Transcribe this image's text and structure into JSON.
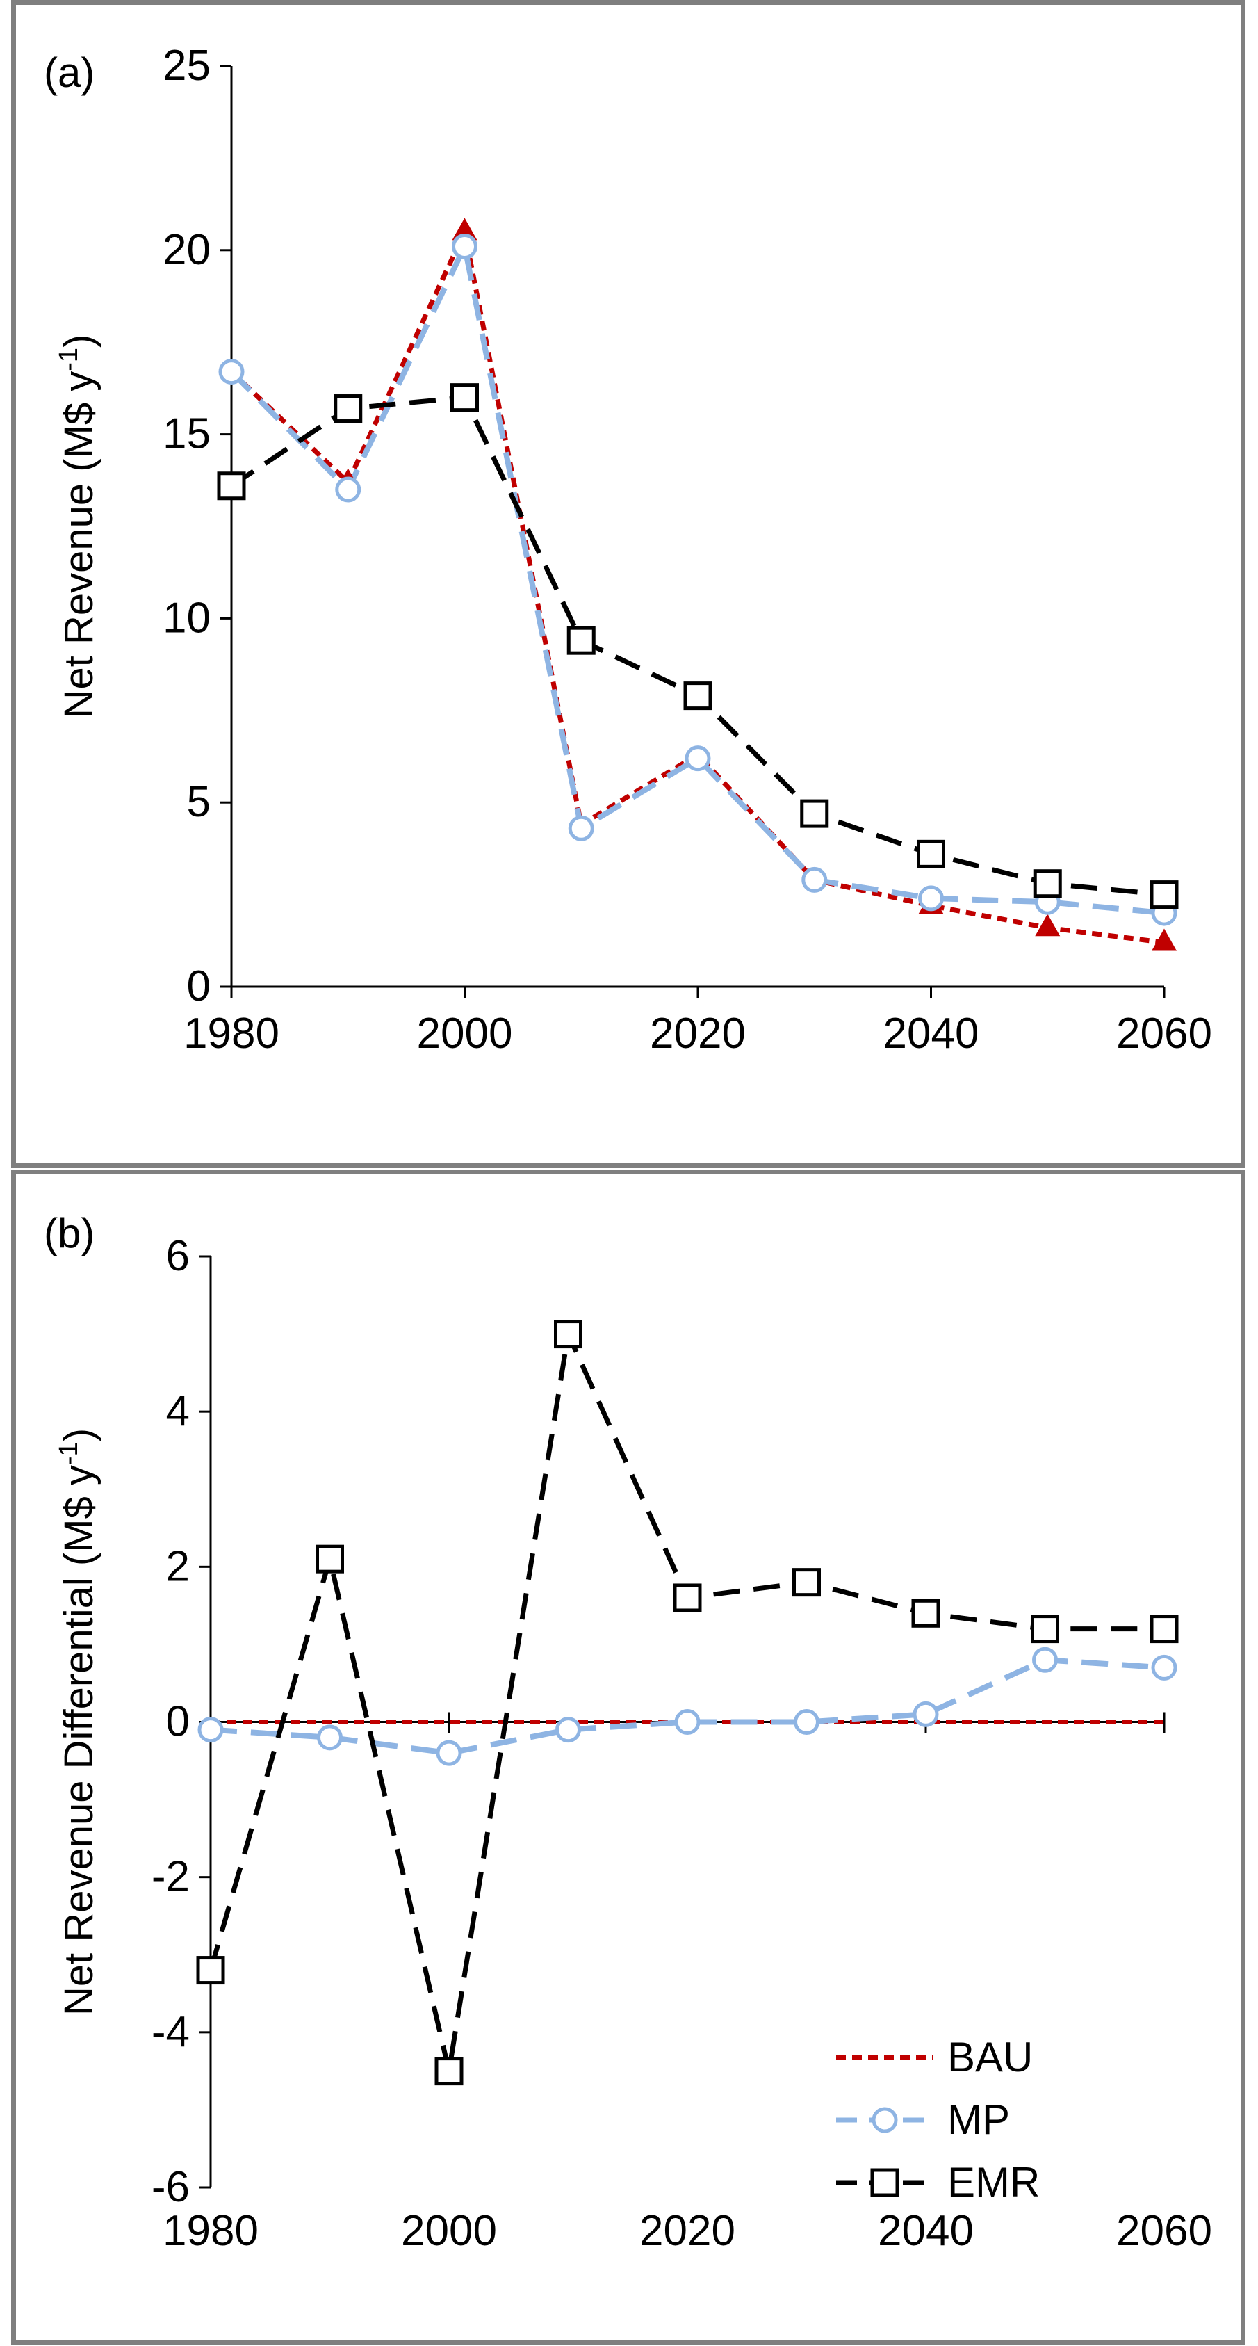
{
  "chart_data": [
    {
      "type": "line",
      "panel_label": "(a)",
      "ylabel": "Net Revenue (M$ y",
      "ylabel_sup": "-1",
      "ylabel_close": ")",
      "x": [
        1980,
        1990,
        2000,
        2010,
        2020,
        2030,
        2040,
        2050,
        2060
      ],
      "xticks": [
        1980,
        2000,
        2020,
        2040,
        2060
      ],
      "yticks": [
        0,
        5,
        10,
        15,
        20,
        25
      ],
      "xlim": [
        1980,
        2060
      ],
      "ylim": [
        0,
        25
      ],
      "grid": false,
      "series": [
        {
          "name": "BAU",
          "color": "#c00000",
          "dash": "dashed-short",
          "marker": "filled-circle/triangle",
          "values": [
            16.7,
            13.7,
            20.5,
            4.4,
            6.3,
            2.9,
            2.2,
            1.6,
            1.2
          ]
        },
        {
          "name": "MP",
          "color": "#8eb4e3",
          "dash": "dashed-long",
          "marker": "open-circle",
          "values": [
            16.7,
            13.5,
            20.1,
            4.3,
            6.2,
            2.9,
            2.4,
            2.3,
            2.0
          ]
        },
        {
          "name": "EMR",
          "color": "#000000",
          "dash": "dashed-long",
          "marker": "open-square",
          "values": [
            13.6,
            15.7,
            16.0,
            9.4,
            7.9,
            4.7,
            3.6,
            2.8,
            2.5
          ]
        }
      ]
    },
    {
      "type": "line",
      "panel_label": "(b)",
      "ylabel": "Net Revenue Differential (M$ y",
      "ylabel_sup": "-1",
      "ylabel_close": ")",
      "x": [
        1980,
        1990,
        2000,
        2010,
        2020,
        2030,
        2040,
        2050,
        2060
      ],
      "xticks": [
        1980,
        2000,
        2020,
        2040,
        2060
      ],
      "yticks": [
        -6,
        -4,
        -2,
        0,
        2,
        4,
        6
      ],
      "xlim": [
        1980,
        2060
      ],
      "ylim": [
        -6,
        6
      ],
      "grid": false,
      "legend_position": "bottom-right",
      "series": [
        {
          "name": "BAU",
          "color": "#c00000",
          "dash": "dashed-short",
          "marker": "none",
          "values": [
            0,
            0,
            0,
            0,
            0,
            0,
            0,
            0,
            0
          ]
        },
        {
          "name": "MP",
          "color": "#8eb4e3",
          "dash": "dashed-long",
          "marker": "open-circle",
          "values": [
            -0.1,
            -0.2,
            -0.4,
            -0.1,
            0.0,
            0.0,
            0.1,
            0.8,
            0.7
          ]
        },
        {
          "name": "EMR",
          "color": "#000000",
          "dash": "dashed-long",
          "marker": "open-square",
          "values": [
            -3.2,
            2.1,
            -4.5,
            5.0,
            1.6,
            1.8,
            1.4,
            1.2,
            1.2
          ]
        }
      ]
    }
  ]
}
